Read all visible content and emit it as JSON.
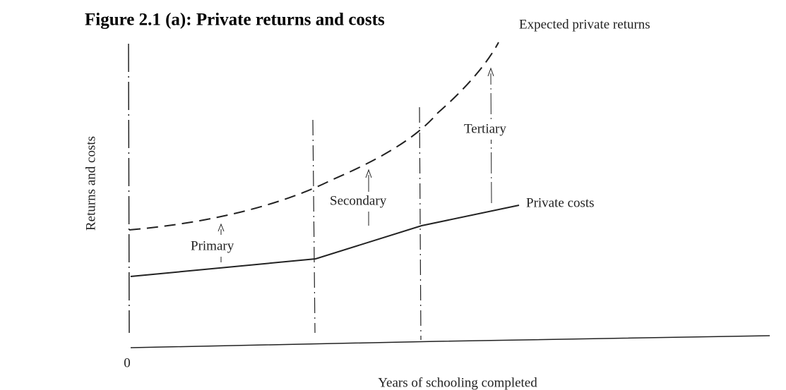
{
  "title": "Figure 2.1 (a): Private returns and costs",
  "curves": {
    "returns": "Expected private returns",
    "costs": "Private costs"
  },
  "axes": {
    "y_label": "Returns and costs",
    "x_label": "Years of schooling completed",
    "origin": "0"
  },
  "stages": [
    "Primary",
    "Secondary",
    "Tertiary"
  ]
}
